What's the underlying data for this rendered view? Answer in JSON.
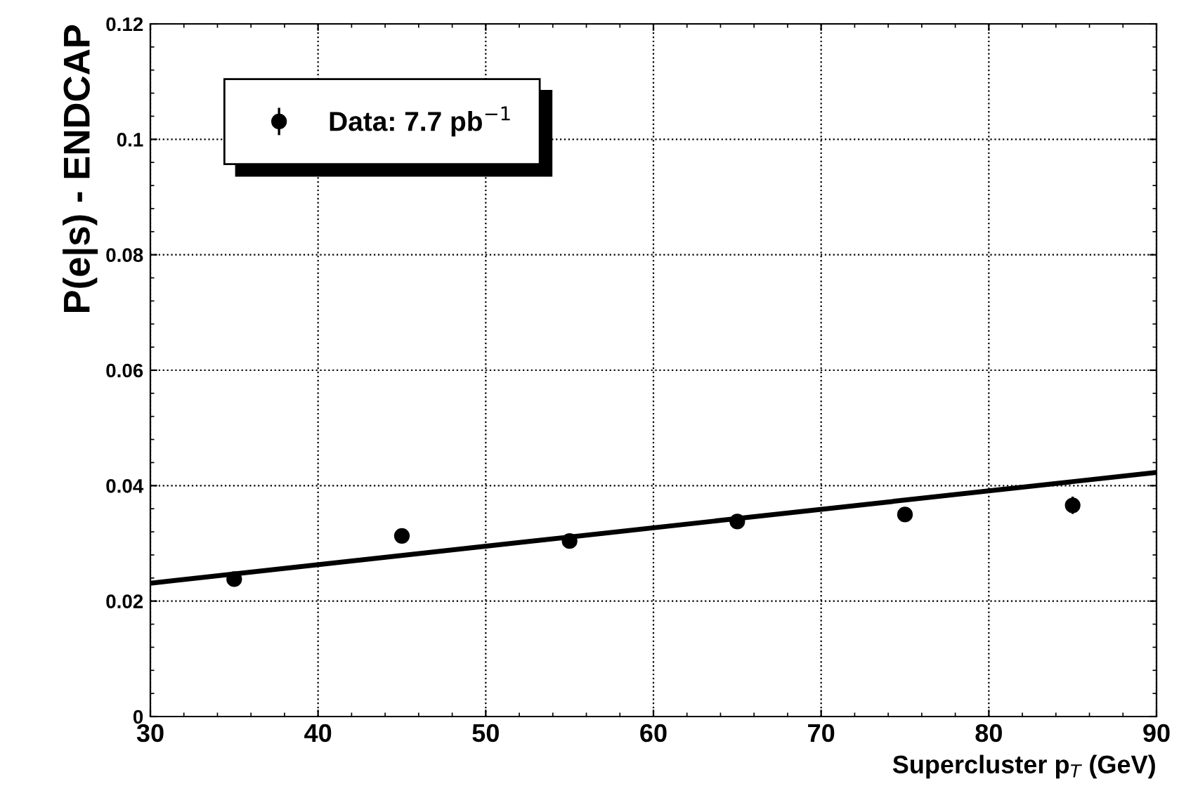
{
  "chart_data": {
    "type": "scatter",
    "xlabel": "Supercluster p$_{T}$ (GeV)",
    "ylabel": "P(e|s) - ENDCAP",
    "xlim": [
      30,
      90
    ],
    "ylim": [
      0,
      0.12
    ],
    "xticks": [
      30,
      40,
      50,
      60,
      70,
      80,
      90
    ],
    "yticks": [
      0,
      0.02,
      0.04,
      0.06,
      0.08,
      0.1,
      0.12
    ],
    "grid": true,
    "legend": "top left",
    "series": [
      {
        "name": "Data: 7.7 pb$^{−1}$",
        "marker": "circle",
        "color": "#000000",
        "x": [
          35,
          45,
          55,
          65,
          75,
          85
        ],
        "values": [
          0.0238,
          0.0313,
          0.0304,
          0.0338,
          0.035,
          0.0366
        ],
        "errors": [
          0.0006,
          0.0006,
          0.0006,
          0.0007,
          0.0008,
          0.0015
        ]
      },
      {
        "type": "line",
        "color": "#000000",
        "x": [
          30,
          90
        ],
        "values": [
          0.0231,
          0.0423
        ],
        "line_style": "solid",
        "marker": "none"
      }
    ]
  }
}
